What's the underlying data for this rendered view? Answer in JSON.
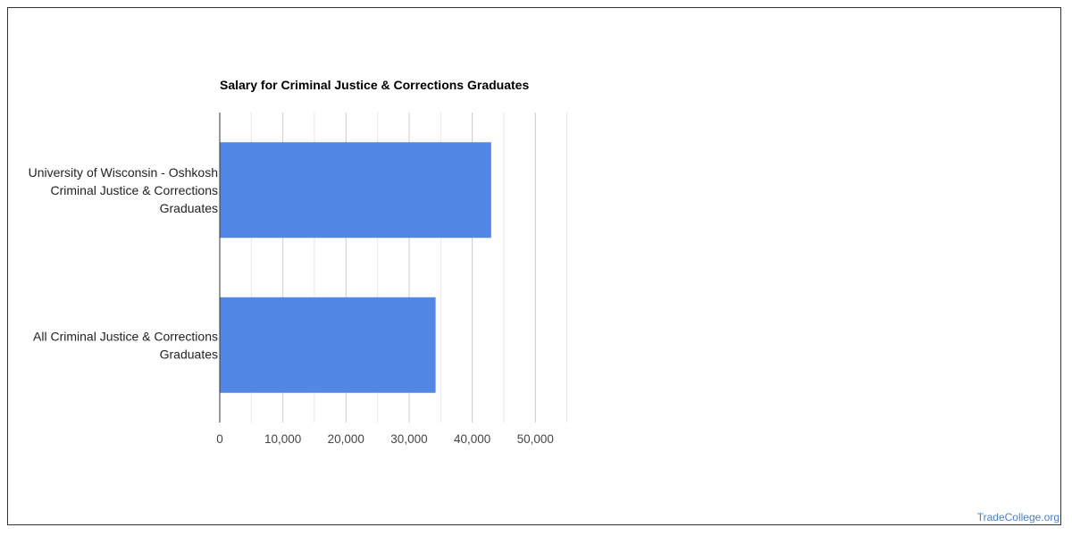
{
  "chart_data": {
    "type": "bar",
    "orientation": "horizontal",
    "title": "Salary for Criminal Justice & Corrections Graduates",
    "categories": [
      [
        "University of Wisconsin - Oshkosh",
        "Criminal Justice & Corrections",
        "Graduates"
      ],
      [
        "All Criminal Justice & Corrections",
        "Graduates"
      ]
    ],
    "values": [
      43000,
      34200
    ],
    "xlim": [
      0,
      60000
    ],
    "xticks": [
      0,
      10000,
      20000,
      30000,
      40000,
      50000
    ],
    "xtick_labels": [
      "0",
      "10,000",
      "20,000",
      "30,000",
      "40,000",
      "50,000"
    ],
    "grid": true,
    "bar_color": "#5387e5",
    "legend": "none"
  },
  "watermark": "TradeCollege.org",
  "colors": {
    "grid_major": "#cccccc",
    "grid_minor": "#e6e6e6",
    "axis": "#333333"
  }
}
